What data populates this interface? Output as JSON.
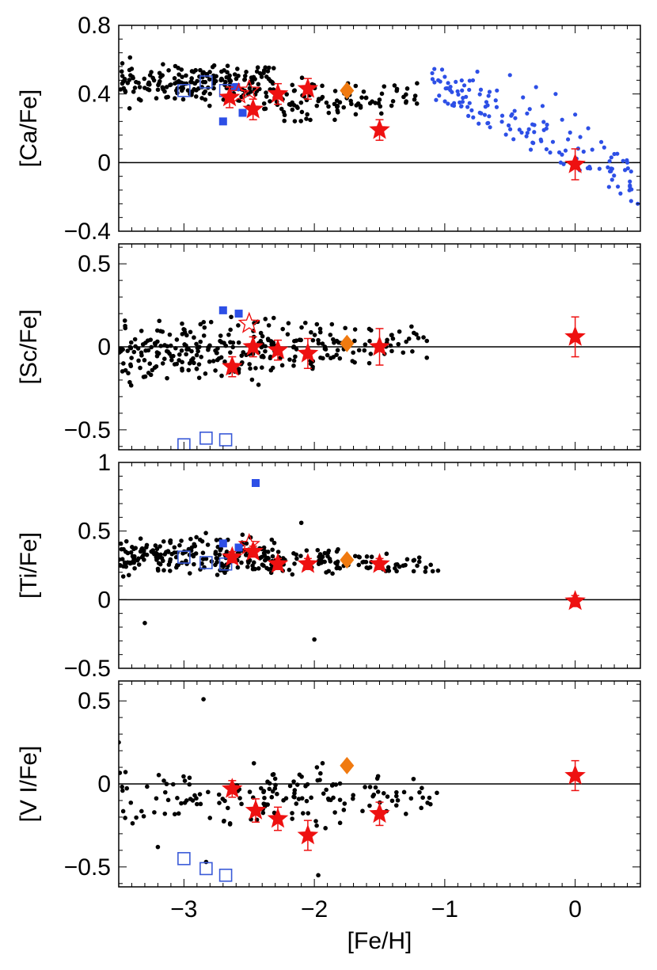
{
  "figure": {
    "xlabel": "[Fe/H]",
    "xlim": [
      -3.5,
      0.5
    ],
    "xticks": [
      -3,
      -2,
      -1,
      0
    ],
    "xtick_labels": [
      "−3",
      "−2",
      "−1",
      "0"
    ],
    "colors": {
      "field_star": "#000000",
      "disk_star": "#2d4fe6",
      "square": "#2d4fe6",
      "open_square": "#3a5ad8",
      "star_marker": "#ee1111",
      "diamond": "#f07a10",
      "zero_line": "#000000"
    }
  },
  "chart_data": [
    {
      "type": "scatter",
      "panel": "Ca",
      "ylabel": "[Ca/Fe]",
      "ylim": [
        -0.4,
        0.8
      ],
      "yticks": [
        -0.4,
        0,
        0.4,
        0.8
      ],
      "ytick_labels": [
        "−0.4",
        "0",
        "0.4",
        "0.8"
      ],
      "zero_line": 0,
      "black_seed": 11,
      "black_n": 300,
      "black_clusters": [
        {
          "x": [
            -3.5,
            -2.3
          ],
          "y": [
            0.3,
            0.62
          ],
          "n": 200
        },
        {
          "x": [
            -2.4,
            -1.8
          ],
          "y": [
            0.2,
            0.52
          ],
          "n": 60
        },
        {
          "x": [
            -1.8,
            -1.2
          ],
          "y": [
            0.25,
            0.5
          ],
          "n": 40
        }
      ],
      "blue_disk": [
        {
          "x": -1.05,
          "y": 0.48
        },
        {
          "x": -1.0,
          "y": 0.5
        },
        {
          "x": -0.85,
          "y": 0.45
        },
        {
          "x": -0.75,
          "y": 0.53
        },
        {
          "x": -0.6,
          "y": 0.42
        },
        {
          "x": -0.5,
          "y": 0.51
        },
        {
          "x": -0.4,
          "y": 0.38
        },
        {
          "x": -0.3,
          "y": 0.44
        },
        {
          "x": -0.25,
          "y": 0.33
        },
        {
          "x": -0.15,
          "y": 0.4
        },
        {
          "x": -0.1,
          "y": 0.25
        },
        {
          "x": 0.0,
          "y": 0.28
        },
        {
          "x": 0.1,
          "y": 0.2
        },
        {
          "x": 0.2,
          "y": 0.12
        },
        {
          "x": 0.3,
          "y": 0.05
        },
        {
          "x": 0.4,
          "y": 0.0
        },
        {
          "x": 0.48,
          "y": -0.24
        }
      ],
      "blue_disk_seed": 5,
      "blue_disk_n": 130,
      "filled_squares": [
        {
          "x": -2.7,
          "y": 0.24
        },
        {
          "x": -2.55,
          "y": 0.29
        },
        {
          "x": -2.6,
          "y": 0.44
        }
      ],
      "open_squares": [
        {
          "x": -3.0,
          "y": 0.42
        },
        {
          "x": -2.83,
          "y": 0.47
        },
        {
          "x": -2.68,
          "y": 0.42
        }
      ],
      "stars": [
        {
          "x": -2.65,
          "y": 0.38,
          "err": 0.06
        },
        {
          "x": -2.47,
          "y": 0.31,
          "err": 0.06
        },
        {
          "x": -2.28,
          "y": 0.4,
          "err": 0.06
        },
        {
          "x": -2.05,
          "y": 0.43,
          "err": 0.06
        },
        {
          "x": -1.5,
          "y": 0.19,
          "err": 0.06
        },
        {
          "x": 0.0,
          "y": -0.01,
          "err": 0.09
        }
      ],
      "open_stars": [
        {
          "x": -2.5,
          "y": 0.42
        },
        {
          "x": -2.58,
          "y": 0.4
        }
      ],
      "diamonds": [
        {
          "x": -1.75,
          "y": 0.42
        }
      ]
    },
    {
      "type": "scatter",
      "panel": "Sc",
      "ylabel": "[Sc/Fe]",
      "ylim": [
        -0.62,
        0.62
      ],
      "yticks": [
        -0.5,
        0,
        0.5
      ],
      "ytick_labels": [
        "−0.5",
        "0",
        "0.5"
      ],
      "zero_line": 0,
      "black_seed": 23,
      "black_clusters": [
        {
          "x": [
            -3.5,
            -2.3
          ],
          "y": [
            -0.3,
            0.25
          ],
          "n": 190
        },
        {
          "x": [
            -2.4,
            -1.8
          ],
          "y": [
            -0.2,
            0.2
          ],
          "n": 60
        },
        {
          "x": [
            -1.8,
            -1.05
          ],
          "y": [
            -0.15,
            0.18
          ],
          "n": 40
        }
      ],
      "filled_squares": [
        {
          "x": -2.7,
          "y": 0.22
        },
        {
          "x": -2.58,
          "y": 0.2
        }
      ],
      "open_squares": [
        {
          "x": -3.0,
          "y": -0.59
        },
        {
          "x": -2.83,
          "y": -0.55
        },
        {
          "x": -2.68,
          "y": -0.56
        }
      ],
      "stars": [
        {
          "x": -2.63,
          "y": -0.12,
          "err": 0.06
        },
        {
          "x": -2.47,
          "y": 0.0,
          "err": 0.06
        },
        {
          "x": -2.28,
          "y": -0.02,
          "err": 0.06
        },
        {
          "x": -2.05,
          "y": -0.04,
          "err": 0.09
        },
        {
          "x": -1.5,
          "y": 0.0,
          "err": 0.11
        },
        {
          "x": 0.0,
          "y": 0.06,
          "err": 0.12
        }
      ],
      "open_stars": [
        {
          "x": -2.5,
          "y": 0.14
        }
      ],
      "diamonds": [
        {
          "x": -1.75,
          "y": 0.02
        }
      ]
    },
    {
      "type": "scatter",
      "panel": "Ti",
      "ylabel": "[Ti/Fe]",
      "ylim": [
        -0.5,
        1.0
      ],
      "yticks": [
        -0.5,
        0,
        0.5,
        1
      ],
      "ytick_labels": [
        "−0.5",
        "0",
        "0.5",
        "1"
      ],
      "zero_line": 0,
      "black_seed": 37,
      "black_clusters": [
        {
          "x": [
            -3.5,
            -2.3
          ],
          "y": [
            0.12,
            0.5
          ],
          "n": 200
        },
        {
          "x": [
            -2.4,
            -1.8
          ],
          "y": [
            0.15,
            0.42
          ],
          "n": 60
        },
        {
          "x": [
            -1.8,
            -1.05
          ],
          "y": [
            0.15,
            0.38
          ],
          "n": 40
        }
      ],
      "black_extra": [
        {
          "x": -3.3,
          "y": -0.17
        },
        {
          "x": -2.0,
          "y": -0.29
        },
        {
          "x": -2.1,
          "y": 0.56
        }
      ],
      "filled_squares": [
        {
          "x": -2.45,
          "y": 0.85
        },
        {
          "x": -2.7,
          "y": 0.41
        },
        {
          "x": -2.58,
          "y": 0.38
        }
      ],
      "open_squares": [
        {
          "x": -3.0,
          "y": 0.31
        },
        {
          "x": -2.83,
          "y": 0.27
        },
        {
          "x": -2.68,
          "y": 0.26
        }
      ],
      "stars": [
        {
          "x": -2.63,
          "y": 0.31,
          "err": 0.04
        },
        {
          "x": -2.47,
          "y": 0.35,
          "err": 0.04
        },
        {
          "x": -2.28,
          "y": 0.26,
          "err": 0.04
        },
        {
          "x": -2.05,
          "y": 0.26,
          "err": 0.04
        },
        {
          "x": -1.5,
          "y": 0.26,
          "err": 0.04
        },
        {
          "x": 0.0,
          "y": -0.01,
          "err": 0.04
        }
      ],
      "open_stars": [
        {
          "x": -2.5,
          "y": 0.4
        }
      ],
      "diamonds": [
        {
          "x": -1.75,
          "y": 0.29
        }
      ]
    },
    {
      "type": "scatter",
      "panel": "V",
      "ylabel": "[V I/Fe]",
      "ylim": [
        -0.62,
        0.62
      ],
      "yticks": [
        -0.5,
        0,
        0.5
      ],
      "ytick_labels": [
        "−0.5",
        "0",
        "0.5"
      ],
      "zero_line": 0,
      "black_seed": 51,
      "black_clusters": [
        {
          "x": [
            -3.5,
            -2.3
          ],
          "y": [
            -0.35,
            0.2
          ],
          "n": 75
        },
        {
          "x": [
            -2.4,
            -1.8
          ],
          "y": [
            -0.3,
            0.18
          ],
          "n": 55
        },
        {
          "x": [
            -1.8,
            -1.05
          ],
          "y": [
            -0.25,
            0.1
          ],
          "n": 35
        }
      ],
      "black_extra": [
        {
          "x": -2.85,
          "y": 0.51
        },
        {
          "x": -3.5,
          "y": 0.25
        },
        {
          "x": -1.97,
          "y": -0.55
        },
        {
          "x": -2.83,
          "y": -0.47
        },
        {
          "x": -3.2,
          "y": -0.38
        }
      ],
      "filled_squares": [],
      "open_squares": [
        {
          "x": -3.0,
          "y": -0.45
        },
        {
          "x": -2.83,
          "y": -0.51
        },
        {
          "x": -2.68,
          "y": -0.55
        }
      ],
      "stars": [
        {
          "x": -2.63,
          "y": -0.03,
          "err": 0.05
        },
        {
          "x": -2.45,
          "y": -0.16,
          "err": 0.07
        },
        {
          "x": -2.28,
          "y": -0.21,
          "err": 0.07
        },
        {
          "x": -2.05,
          "y": -0.31,
          "err": 0.09
        },
        {
          "x": -1.5,
          "y": -0.18,
          "err": 0.07
        },
        {
          "x": 0.0,
          "y": 0.05,
          "err": 0.09
        }
      ],
      "open_stars": [],
      "diamonds": [
        {
          "x": -1.75,
          "y": 0.11
        }
      ]
    }
  ]
}
